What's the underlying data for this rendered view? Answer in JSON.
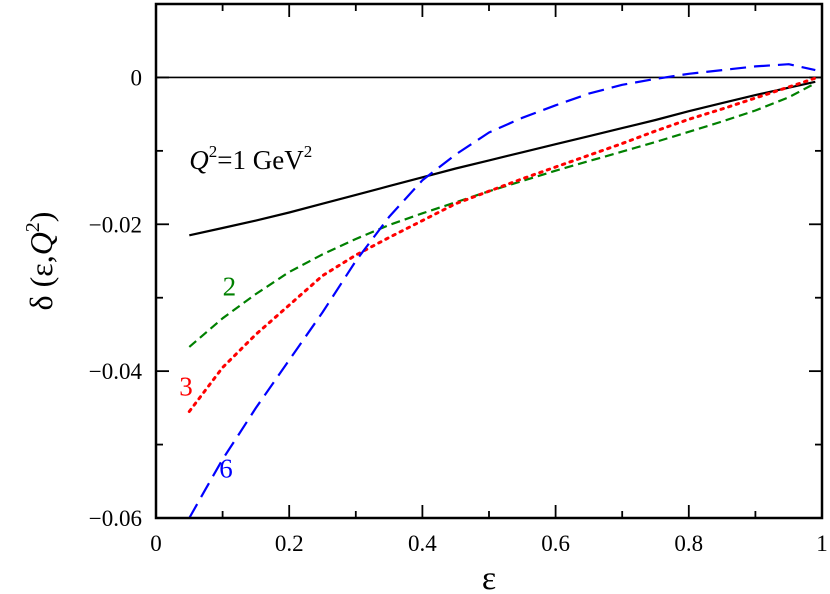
{
  "chart_data": {
    "type": "line",
    "xlabel": "ε",
    "ylabel": {
      "prefix": "δ (ε,",
      "q": "Q",
      "sup": "2",
      "suffix": ")"
    },
    "xlim": [
      0,
      1
    ],
    "ylim": [
      -0.06,
      0.01
    ],
    "x_ticks": [
      0,
      0.2,
      0.4,
      0.6,
      0.8,
      1
    ],
    "x_tick_labels": [
      "0",
      "0.2",
      "0.4",
      "0.6",
      "0.8",
      "1"
    ],
    "y_ticks": [
      0,
      -0.02,
      -0.04,
      -0.06
    ],
    "y_tick_labels": [
      "0",
      "−0.02",
      "−0.04",
      "−0.06"
    ],
    "x_minor_step": 0.1,
    "y_minor_step": 0.01,
    "grid": false,
    "zero_line": 0,
    "series": [
      {
        "label_ref": "q1",
        "color": "#000000",
        "dash": "solid",
        "x": [
          0.05,
          0.1,
          0.15,
          0.2,
          0.25,
          0.3,
          0.35,
          0.4,
          0.45,
          0.5,
          0.55,
          0.6,
          0.65,
          0.7,
          0.75,
          0.8,
          0.85,
          0.9,
          0.95,
          0.99
        ],
        "y": [
          -0.0215,
          -0.0205,
          -0.0195,
          -0.0184,
          -0.0172,
          -0.016,
          -0.0148,
          -0.0136,
          -0.0124,
          -0.0113,
          -0.0102,
          -0.0091,
          -0.008,
          -0.0069,
          -0.0058,
          -0.0046,
          -0.0035,
          -0.0024,
          -0.0014,
          -0.0006
        ]
      },
      {
        "label_ref": "q2",
        "color": "#008000",
        "dash": "dashed",
        "x": [
          0.05,
          0.1,
          0.15,
          0.2,
          0.25,
          0.3,
          0.35,
          0.4,
          0.45,
          0.5,
          0.55,
          0.6,
          0.65,
          0.7,
          0.75,
          0.8,
          0.85,
          0.9,
          0.95,
          0.99
        ],
        "y": [
          -0.0367,
          -0.0328,
          -0.0295,
          -0.0265,
          -0.0241,
          -0.022,
          -0.0201,
          -0.0185,
          -0.017,
          -0.0155,
          -0.0141,
          -0.0127,
          -0.0114,
          -0.0101,
          -0.0088,
          -0.0074,
          -0.006,
          -0.0045,
          -0.0027,
          -0.0008
        ]
      },
      {
        "label_ref": "q3",
        "color": "#ff0000",
        "dash": "dotted",
        "x": [
          0.05,
          0.1,
          0.15,
          0.2,
          0.25,
          0.3,
          0.35,
          0.4,
          0.45,
          0.5,
          0.55,
          0.6,
          0.65,
          0.7,
          0.75,
          0.8,
          0.85,
          0.9,
          0.95,
          0.99
        ],
        "y": [
          -0.0455,
          -0.0395,
          -0.035,
          -0.031,
          -0.027,
          -0.0242,
          -0.0218,
          -0.0195,
          -0.0172,
          -0.0155,
          -0.0138,
          -0.0122,
          -0.0106,
          -0.009,
          -0.0073,
          -0.0057,
          -0.0043,
          -0.0028,
          -0.0013,
          -0.0001
        ]
      },
      {
        "label_ref": "q6",
        "color": "#0000ff",
        "dash": "longdash",
        "x": [
          0.05,
          0.075,
          0.1,
          0.125,
          0.15,
          0.2,
          0.25,
          0.3,
          0.35,
          0.4,
          0.45,
          0.5,
          0.55,
          0.6,
          0.65,
          0.7,
          0.75,
          0.8,
          0.85,
          0.9,
          0.95,
          0.99
        ],
        "y": [
          -0.06,
          -0.056,
          -0.052,
          -0.0485,
          -0.045,
          -0.0385,
          -0.032,
          -0.025,
          -0.019,
          -0.014,
          -0.0105,
          -0.0075,
          -0.0055,
          -0.0038,
          -0.0022,
          -0.001,
          -0.0002,
          0.0005,
          0.001,
          0.0015,
          0.0018,
          0.001
        ]
      }
    ],
    "annotations": {
      "q1": {
        "q": "Q",
        "sup1": "2",
        "eq": "=1 GeV",
        "sup2": "2",
        "color": "#000000",
        "x": 0.05,
        "y": -0.0125
      },
      "q2": {
        "text": "2",
        "color": "#008000",
        "x": 0.1,
        "y": -0.0297
      },
      "q3": {
        "text": "3",
        "color": "#ff0000",
        "x": 0.035,
        "y": -0.0433
      },
      "q6": {
        "text": "6",
        "color": "#0000ff",
        "x": 0.095,
        "y": -0.0545
      }
    }
  }
}
